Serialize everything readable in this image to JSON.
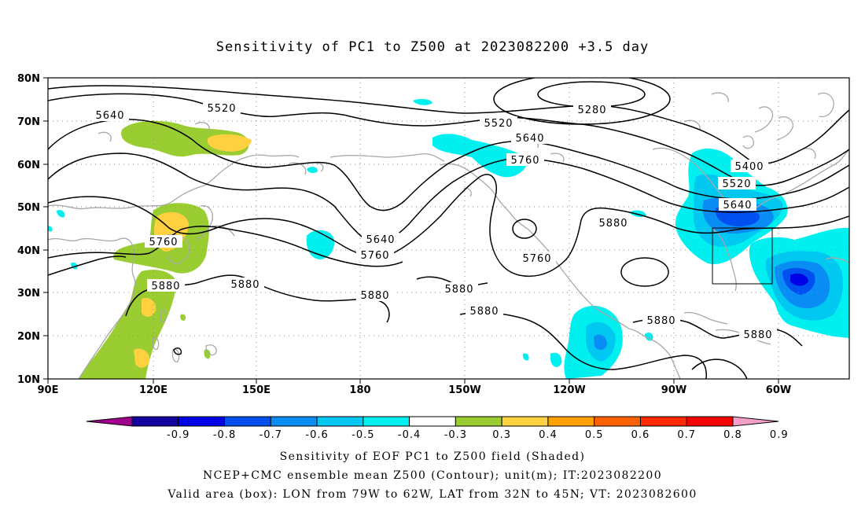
{
  "title": "Sensitivity of PC1 to Z500 at 2023082200 +3.5 day",
  "axes": {
    "lat_labels": [
      "80N",
      "70N",
      "60N",
      "50N",
      "40N",
      "30N",
      "20N",
      "10N"
    ],
    "lon_labels": [
      "90E",
      "120E",
      "150E",
      "180",
      "150W",
      "120W",
      "90W",
      "60W"
    ]
  },
  "contour_labels": {
    "z5280": "5280",
    "z5400": "5400",
    "z5520a": "5520",
    "z5520b": "5520",
    "z5520c": "5520",
    "z5640a": "5640",
    "z5640b": "5640",
    "z5640c": "5640",
    "z5640d": "5640",
    "z5760a": "5760",
    "z5760b": "5760",
    "z5760c": "5760",
    "z5760d": "5760",
    "z5880a": "5880",
    "z5880b": "5880",
    "z5880c": "5880",
    "z5880d": "5880",
    "z5880e": "5880",
    "z5880f": "5880",
    "z5880g": "5880",
    "z5880h": "5880"
  },
  "colorbar": {
    "colors": [
      "#a0008c",
      "#1400a0",
      "#0000e6",
      "#0050f0",
      "#0a8cf5",
      "#00c8f0",
      "#00f0f0",
      "#ffffff",
      "#9acd32",
      "#ffd040",
      "#ffa000",
      "#ff6000",
      "#ff2800",
      "#f50000",
      "#f5a0c8"
    ],
    "labels": [
      "-0.9",
      "-0.8",
      "-0.7",
      "-0.6",
      "-0.5",
      "-0.4",
      "-0.3",
      "0.3",
      "0.4",
      "0.5",
      "0.6",
      "0.7",
      "0.8",
      "0.9"
    ]
  },
  "captions": {
    "line1": "Sensitivity of EOF PC1 to Z500 field (Shaded)",
    "line2": "NCEP+CMC ensemble mean Z500 (Contour); unit(m); IT:2023082200",
    "line3": "Valid area (box): LON from 79W to 62W, LAT from 32N to 45N; VT: 2023082600"
  }
}
